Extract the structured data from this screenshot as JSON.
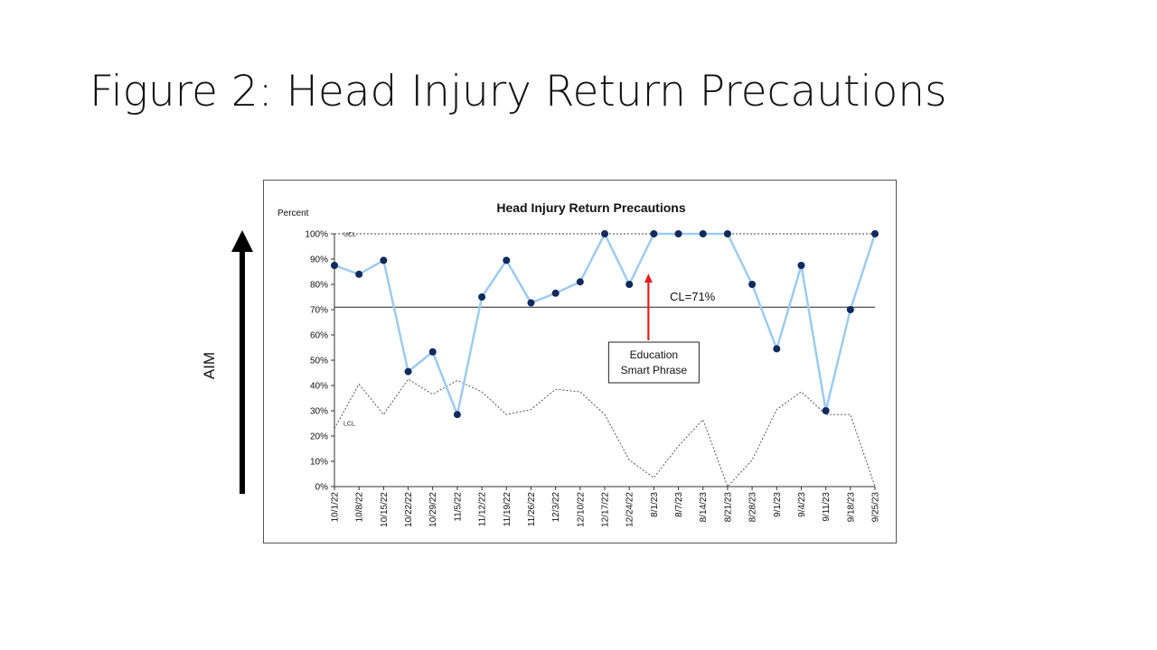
{
  "slide": {
    "title": "Figure 2: Head Injury Return Precautions"
  },
  "aim": {
    "label": "AIM"
  },
  "chart_data": {
    "type": "line",
    "title": "Head Injury Return Precautions",
    "ylabel": "Percent",
    "ylim": [
      0,
      100
    ],
    "y_ticks": [
      "0%",
      "10%",
      "20%",
      "30%",
      "40%",
      "50%",
      "60%",
      "70%",
      "80%",
      "90%",
      "100%"
    ],
    "categories": [
      "10/1/22",
      "10/8/22",
      "10/15/22",
      "10/22/22",
      "10/29/22",
      "11/5/22",
      "11/12/22",
      "11/19/22",
      "11/26/22",
      "12/3/22",
      "12/10/22",
      "12/17/22",
      "12/24/22",
      "8/1/23",
      "8/7/23",
      "8/14/23",
      "8/21/23",
      "8/28/23",
      "9/1/23",
      "9/4/23",
      "9/11/23",
      "9/18/23",
      "9/25/23"
    ],
    "series": [
      {
        "values": [
          87.5,
          84,
          89.5,
          45.5,
          53.3,
          28.5,
          75,
          89.5,
          72.7,
          76.5,
          81,
          100,
          80,
          100,
          100,
          100,
          100,
          80,
          54.5,
          87.5,
          30,
          70,
          100
        ],
        "color": "#9ccbf0",
        "marker_color": "#0f2a5c"
      }
    ],
    "center_line": {
      "value": 71,
      "label": "CL=71%"
    },
    "ucl": {
      "label": "UCL",
      "values": [
        100,
        100,
        100,
        100,
        100,
        100,
        100,
        100,
        100,
        100,
        100,
        100,
        100,
        100,
        100,
        100,
        100,
        100,
        100,
        100,
        100,
        100,
        100
      ]
    },
    "lcl": {
      "label": "LCL",
      "values": [
        23,
        40.5,
        28.5,
        42.5,
        36.5,
        42,
        37.5,
        28.5,
        30.5,
        38.5,
        37.5,
        28.5,
        10.5,
        3.5,
        16,
        26.5,
        0,
        10.5,
        30.5,
        37.5,
        28.5,
        28.5,
        0
      ]
    },
    "annotation": {
      "lines": [
        "Education",
        "Smart Phrase"
      ],
      "at_category": "8/1/23",
      "arrow_color": "#e02020"
    },
    "grid": false,
    "legend": "none"
  }
}
